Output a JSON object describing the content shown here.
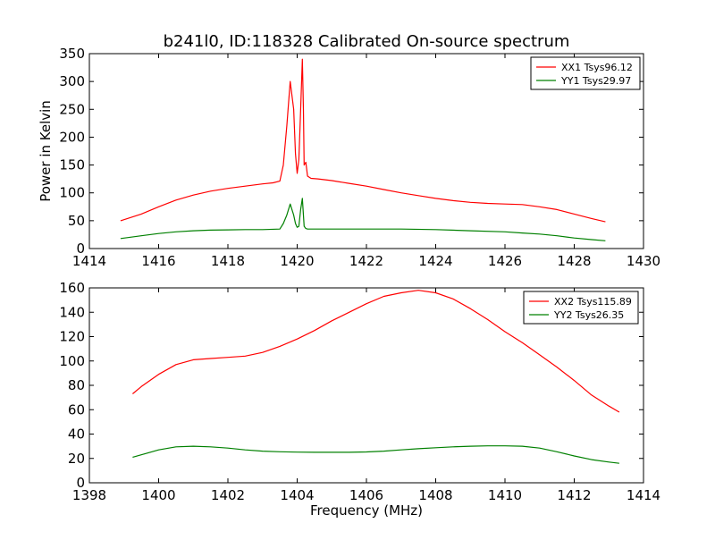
{
  "figure": {
    "title": "b241l0, ID:118328 Calibrated On-source spectrum"
  },
  "chart_data": [
    {
      "type": "line",
      "title": "b241l0, ID:118328 Calibrated On-source spectrum",
      "xlabel": "",
      "ylabel": "Power in Kelvin",
      "xlim": [
        1414,
        1430
      ],
      "ylim": [
        0,
        350
      ],
      "xticks": [
        1414,
        1416,
        1418,
        1420,
        1422,
        1424,
        1426,
        1428,
        1430
      ],
      "yticks": [
        0,
        50,
        100,
        150,
        200,
        250,
        300,
        350
      ],
      "legend": "top-right",
      "grid": false,
      "series": [
        {
          "name": "XX1 Tsys96.12",
          "color": "#ff0000",
          "x": [
            1414.9,
            1415.5,
            1416.0,
            1416.5,
            1417.0,
            1417.5,
            1418.0,
            1418.5,
            1419.0,
            1419.3,
            1419.5,
            1419.6,
            1419.7,
            1419.8,
            1419.9,
            1419.95,
            1420.0,
            1420.05,
            1420.1,
            1420.15,
            1420.18,
            1420.2,
            1420.25,
            1420.3,
            1420.4,
            1420.6,
            1421.0,
            1421.5,
            1422.0,
            1422.5,
            1423.0,
            1423.5,
            1424.0,
            1424.5,
            1425.0,
            1425.5,
            1426.0,
            1426.5,
            1427.0,
            1427.5,
            1428.0,
            1428.5,
            1428.9
          ],
          "y": [
            50,
            62,
            75,
            87,
            96,
            103,
            108,
            112,
            116,
            118,
            121,
            150,
            220,
            300,
            250,
            170,
            135,
            160,
            250,
            340,
            250,
            150,
            155,
            130,
            126,
            125,
            122,
            117,
            112,
            106,
            100,
            95,
            90,
            86,
            83,
            81,
            80,
            79,
            75,
            70,
            62,
            54,
            48
          ]
        },
        {
          "name": "YY1 Tsys29.97",
          "color": "#008000",
          "x": [
            1414.9,
            1415.5,
            1416.0,
            1416.5,
            1417.0,
            1417.5,
            1418.0,
            1418.5,
            1419.0,
            1419.5,
            1419.6,
            1419.7,
            1419.8,
            1419.9,
            1419.95,
            1420.0,
            1420.05,
            1420.1,
            1420.15,
            1420.18,
            1420.2,
            1420.25,
            1420.3,
            1420.5,
            1421.0,
            1422.0,
            1423.0,
            1424.0,
            1425.0,
            1426.0,
            1426.5,
            1427.0,
            1427.5,
            1428.0,
            1428.5,
            1428.9
          ],
          "y": [
            18,
            23,
            27,
            30,
            32,
            33,
            33.5,
            34,
            34,
            35,
            45,
            60,
            80,
            60,
            45,
            38,
            40,
            70,
            90,
            60,
            40,
            36,
            35,
            35,
            35,
            35,
            35,
            34,
            32,
            30,
            28,
            26,
            23,
            19,
            16,
            14
          ]
        }
      ]
    },
    {
      "type": "line",
      "title": "",
      "xlabel": "Frequency (MHz)",
      "ylabel": "",
      "xlim": [
        1398,
        1414
      ],
      "ylim": [
        0,
        160
      ],
      "xticks": [
        1398,
        1400,
        1402,
        1404,
        1406,
        1408,
        1410,
        1412,
        1414
      ],
      "yticks": [
        0,
        20,
        40,
        60,
        80,
        100,
        120,
        140,
        160
      ],
      "legend": "top-right",
      "grid": false,
      "series": [
        {
          "name": "XX2 Tsys115.89",
          "color": "#ff0000",
          "x": [
            1399.25,
            1399.5,
            1400.0,
            1400.5,
            1401.0,
            1401.5,
            1402.0,
            1402.5,
            1403.0,
            1403.5,
            1404.0,
            1404.5,
            1405.0,
            1405.5,
            1406.0,
            1406.5,
            1407.0,
            1407.5,
            1408.0,
            1408.5,
            1409.0,
            1409.5,
            1410.0,
            1410.5,
            1411.0,
            1411.5,
            1412.0,
            1412.5,
            1413.0,
            1413.3
          ],
          "y": [
            73,
            79,
            89,
            97,
            101,
            102,
            103,
            104,
            107,
            112,
            118,
            125,
            133,
            140,
            147,
            153,
            156,
            158,
            156,
            151,
            143,
            134,
            124,
            115,
            105,
            95,
            84,
            72,
            63,
            58
          ]
        },
        {
          "name": "YY2 Tsys26.35",
          "color": "#008000",
          "x": [
            1399.25,
            1399.5,
            1400.0,
            1400.5,
            1401.0,
            1401.5,
            1402.0,
            1402.5,
            1403.0,
            1403.5,
            1404.0,
            1404.5,
            1405.0,
            1405.5,
            1406.0,
            1406.5,
            1407.0,
            1407.5,
            1408.0,
            1408.5,
            1409.0,
            1409.5,
            1410.0,
            1410.5,
            1411.0,
            1411.5,
            1412.0,
            1412.5,
            1413.0,
            1413.3
          ],
          "y": [
            21,
            23,
            27,
            29.5,
            30,
            29.5,
            28.5,
            27,
            26,
            25.5,
            25.2,
            25,
            25,
            25,
            25.3,
            26,
            27,
            28,
            28.8,
            29.5,
            30,
            30.3,
            30.3,
            30,
            28.5,
            25.5,
            22,
            19,
            17,
            16
          ]
        }
      ]
    }
  ]
}
